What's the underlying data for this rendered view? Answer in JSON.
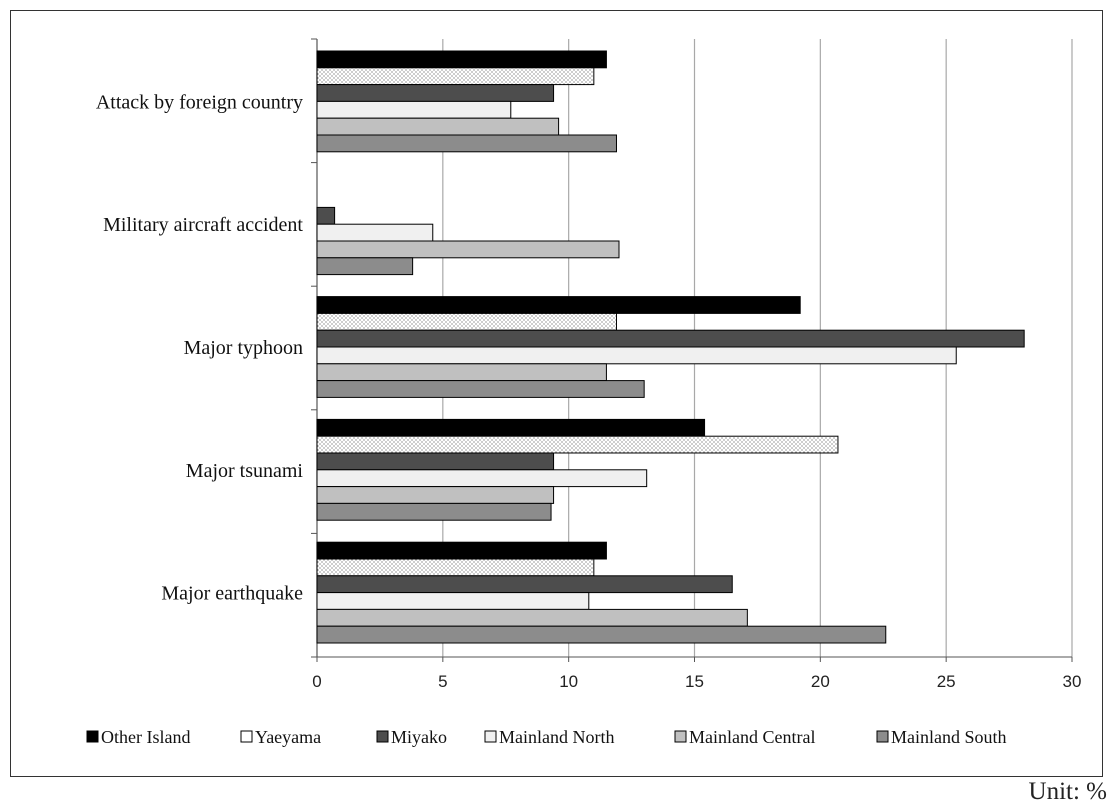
{
  "unit_label": "Unit: %",
  "colors": {
    "Other Island": "#000000",
    "Yaeyama": "#ffffff",
    "Miyako": "#4d4d4d",
    "Mainland North": "#f0f0f0",
    "Mainland Central": "#c0c0c0",
    "Mainland South": "#8c8c8c"
  },
  "chart_data": {
    "type": "bar",
    "orientation": "horizontal",
    "categories": [
      "Attack by foreign country",
      "Military aircraft accident",
      "Major typhoon",
      "Major tsunami",
      "Major earthquake"
    ],
    "series": [
      {
        "name": "Other Island",
        "values": [
          11.5,
          null,
          19.2,
          15.4,
          11.5
        ]
      },
      {
        "name": "Yaeyama",
        "values": [
          11.0,
          null,
          11.9,
          20.7,
          11.0
        ]
      },
      {
        "name": "Miyako",
        "values": [
          9.4,
          0.7,
          28.1,
          9.4,
          16.5
        ]
      },
      {
        "name": "Mainland North",
        "values": [
          7.7,
          4.6,
          25.4,
          13.1,
          10.8
        ]
      },
      {
        "name": "Mainland Central",
        "values": [
          9.6,
          12.0,
          11.5,
          9.4,
          17.1
        ]
      },
      {
        "name": "Mainland South",
        "values": [
          11.9,
          3.8,
          13.0,
          9.3,
          22.6
        ]
      }
    ],
    "xlim": [
      0,
      30
    ],
    "xticks": [
      0,
      5,
      10,
      15,
      20,
      25,
      30
    ],
    "grid": true,
    "legend_position": "bottom"
  }
}
